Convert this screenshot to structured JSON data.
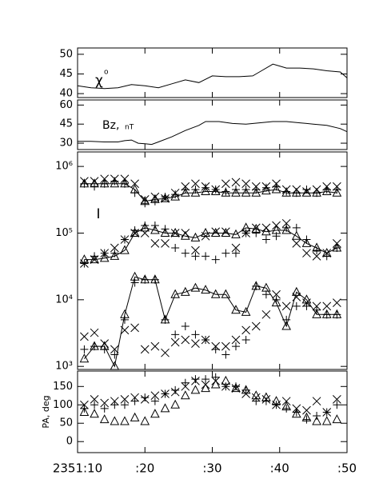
{
  "chart_data": [
    {
      "type": "line",
      "ylabel": "χ",
      "ylabel_sup": "o",
      "color": "#000000",
      "x": [
        10,
        12,
        14,
        16,
        18,
        20,
        22,
        24,
        26,
        28,
        30,
        32,
        34,
        36,
        37,
        39,
        40,
        41,
        43,
        45,
        47,
        49,
        50
      ],
      "values": [
        42,
        41.5,
        41.3,
        41.5,
        42.3,
        42,
        41.5,
        42.5,
        43.5,
        42.8,
        44.5,
        44.3,
        44.3,
        44.5,
        45.5,
        47.5,
        47,
        46.5,
        46.5,
        46.3,
        45.8,
        45.5,
        44
      ],
      "xlim": [
        10,
        50
      ],
      "ylim": [
        39,
        51.6
      ],
      "yticks": [
        40,
        45,
        50
      ]
    },
    {
      "type": "line",
      "ylabel": "Bz,",
      "ylabel_unit": "nT",
      "color": "#000000",
      "x": [
        10,
        12,
        14,
        16,
        17,
        18,
        19,
        20,
        21,
        22,
        24,
        26,
        28,
        29,
        31,
        33,
        35,
        37,
        39,
        41,
        43,
        45,
        47,
        49,
        50
      ],
      "values": [
        31.5,
        31.5,
        31,
        31,
        32,
        32.5,
        30,
        29.5,
        29,
        31,
        35,
        40,
        44,
        47,
        47,
        45.5,
        45,
        46,
        47,
        47,
        46,
        45,
        44,
        41.5,
        39
      ],
      "xlim": [
        10,
        50
      ],
      "ylim": [
        25,
        64
      ],
      "yticks": [
        30,
        45,
        60
      ]
    },
    {
      "type": "scatter",
      "ylabel": "I",
      "log": true,
      "x": [
        11,
        12.5,
        14,
        15.5,
        17,
        18.5,
        20,
        21.5,
        23,
        24.5,
        26,
        27.5,
        29,
        30.5,
        32,
        33.5,
        35,
        36.5,
        38,
        39.5,
        41,
        42.5,
        44,
        45.5,
        47,
        48.5
      ],
      "xlim": [
        10,
        50
      ],
      "ylim": [
        900,
        1650000
      ],
      "yticks": [
        {
          "value": 1000,
          "label": "10³"
        },
        {
          "value": 10000,
          "label": "10⁴"
        },
        {
          "value": 100000,
          "label": "10⁵"
        },
        {
          "value": 1000000,
          "label": "10⁶"
        }
      ],
      "series": [
        {
          "marker": "triangle",
          "connect": true,
          "color": "#000000",
          "values": [
            550000,
            550000,
            550000,
            550000,
            550000,
            450000,
            300000,
            320000,
            330000,
            350000,
            400000,
            400000,
            420000,
            420000,
            400000,
            400000,
            400000,
            400000,
            430000,
            450000,
            400000,
            400000,
            400000,
            400000,
            420000,
            400000
          ]
        },
        {
          "marker": "plus",
          "color": "#000000",
          "values": [
            550000,
            500000,
            550000,
            600000,
            550000,
            400000,
            280000,
            300000,
            350000,
            380000,
            450000,
            450000,
            480000,
            450000,
            420000,
            450000,
            450000,
            450000,
            480000,
            500000,
            420000,
            400000,
            450000,
            400000,
            450000,
            450000
          ]
        },
        {
          "marker": "cross",
          "color": "#000000",
          "values": [
            600000,
            600000,
            650000,
            650000,
            650000,
            550000,
            320000,
            350000,
            330000,
            400000,
            500000,
            550000,
            500000,
            450000,
            550000,
            580000,
            550000,
            500000,
            500000,
            550000,
            450000,
            450000,
            420000,
            450000,
            500000,
            500000
          ]
        },
        {
          "marker": "triangle",
          "connect": true,
          "color": "#000000",
          "values": [
            40000,
            40000,
            42000,
            45000,
            55000,
            100000,
            120000,
            110000,
            100000,
            100000,
            90000,
            85000,
            100000,
            100000,
            100000,
            95000,
            120000,
            115000,
            105000,
            110000,
            110000,
            90000,
            70000,
            60000,
            50000,
            60000
          ]
        },
        {
          "marker": "plus",
          "color": "#000000",
          "values": [
            35000,
            45000,
            50000,
            50000,
            80000,
            110000,
            130000,
            130000,
            115000,
            60000,
            50000,
            45000,
            45000,
            40000,
            50000,
            50000,
            100000,
            100000,
            80000,
            90000,
            120000,
            120000,
            80000,
            55000,
            45000,
            60000
          ]
        },
        {
          "marker": "cross",
          "color": "#000000",
          "values": [
            35000,
            40000,
            50000,
            60000,
            80000,
            100000,
            100000,
            70000,
            70000,
            100000,
            100000,
            55000,
            90000,
            105000,
            105000,
            60000,
            100000,
            120000,
            120000,
            130000,
            140000,
            70000,
            50000,
            45000,
            50000,
            70000
          ]
        },
        {
          "marker": "triangle",
          "connect": true,
          "color": "#000000",
          "values": [
            1300,
            2000,
            2000,
            1000,
            6000,
            22000,
            20000,
            20000,
            5000,
            12000,
            13000,
            15000,
            14000,
            12000,
            12000,
            7000,
            6500,
            16000,
            15000,
            9000,
            4000,
            13000,
            10000,
            6000,
            6000,
            6000
          ]
        },
        {
          "marker": "plus",
          "color": "#000000",
          "values": [
            1800,
            2000,
            1800,
            1500,
            5000,
            18000,
            20000,
            20000,
            5000,
            3000,
            4000,
            3000,
            2500,
            1800,
            1500,
            2000,
            2500,
            16000,
            12000,
            10000,
            5000,
            8000,
            8000,
            7000,
            6000,
            6000
          ]
        },
        {
          "marker": "cross",
          "color": "#000000",
          "values": [
            2800,
            3200,
            2200,
            1800,
            3500,
            3800,
            1800,
            2000,
            1600,
            2300,
            2500,
            2200,
            2500,
            2000,
            2000,
            2500,
            3500,
            4000,
            6000,
            12000,
            8000,
            11000,
            9000,
            8000,
            8000,
            9000
          ]
        }
      ]
    },
    {
      "type": "scatter",
      "ylabel": "PA, deg",
      "x": [
        11,
        12.5,
        14,
        15.5,
        17,
        18.5,
        20,
        21.5,
        23,
        24.5,
        26,
        27.5,
        29,
        30.5,
        32,
        33.5,
        35,
        36.5,
        38,
        39.5,
        41,
        42.5,
        44,
        45.5,
        47,
        48.5
      ],
      "xlim": [
        10,
        50
      ],
      "ylim": [
        -30,
        192
      ],
      "yticks": [
        0,
        50,
        100,
        150
      ],
      "xticks": [
        {
          "value": 10,
          "label": "2351:10"
        },
        {
          "value": 20,
          "label": ":20"
        },
        {
          "value": 30,
          "label": ":30"
        },
        {
          "value": 40,
          "label": ":40"
        },
        {
          "value": 50,
          "label": ":50"
        }
      ],
      "series": [
        {
          "marker": "triangle",
          "color": "#000000",
          "values": [
            80,
            75,
            60,
            55,
            55,
            65,
            55,
            75,
            90,
            100,
            125,
            140,
            145,
            155,
            165,
            145,
            140,
            125,
            120,
            110,
            95,
            75,
            65,
            55,
            55,
            60
          ]
        },
        {
          "marker": "plus",
          "color": "#000000",
          "values": [
            90,
            100,
            90,
            100,
            100,
            110,
            120,
            110,
            130,
            140,
            160,
            170,
            170,
            175,
            150,
            150,
            140,
            110,
            110,
            100,
            90,
            80,
            60,
            70,
            80,
            100
          ]
        },
        {
          "marker": "cross",
          "color": "#000000",
          "values": [
            100,
            115,
            105,
            110,
            115,
            120,
            115,
            125,
            130,
            135,
            150,
            165,
            155,
            165,
            150,
            145,
            130,
            120,
            115,
            100,
            110,
            90,
            85,
            110,
            80,
            115
          ]
        }
      ]
    }
  ]
}
